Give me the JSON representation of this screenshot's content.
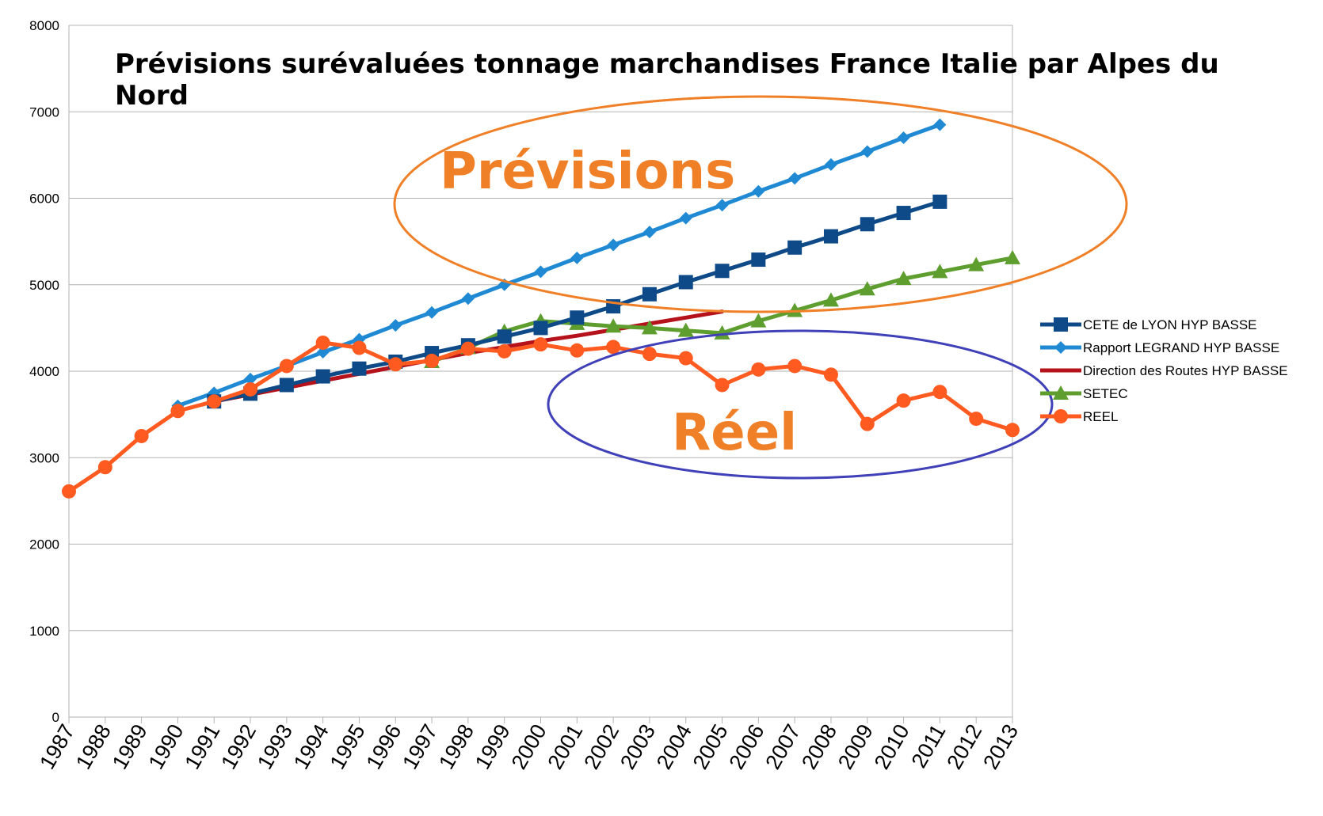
{
  "chart_data": {
    "type": "line",
    "title_lines": [
      "Prévisions surévaluées tonnage marchandises France Italie par Alpes du",
      "Nord"
    ],
    "xlabel": "",
    "ylabel": "",
    "ylim": [
      0,
      8000
    ],
    "y_ticks": [
      0,
      1000,
      2000,
      3000,
      4000,
      5000,
      6000,
      7000,
      8000
    ],
    "x": [
      "1987",
      "1988",
      "1989",
      "1990",
      "1991",
      "1992",
      "1993",
      "1994",
      "1995",
      "1996",
      "1997",
      "1998",
      "1999",
      "2000",
      "2001",
      "2002",
      "2003",
      "2004",
      "2005",
      "2006",
      "2007",
      "2008",
      "2009",
      "2010",
      "2011",
      "2012",
      "2013"
    ],
    "grid": "horizontal",
    "legend_position": "right",
    "series": [
      {
        "name": "CETE de LYON HYP BASSE",
        "color": "#0d4a87",
        "marker": "square",
        "values": [
          null,
          null,
          null,
          null,
          3650,
          3740,
          3840,
          3940,
          4030,
          4110,
          4210,
          4300,
          4400,
          4500,
          4620,
          4750,
          4890,
          5030,
          5160,
          5290,
          5430,
          5560,
          5700,
          5830,
          5960,
          null,
          null
        ]
      },
      {
        "name": "Rapport LEGRAND HYP BASSE",
        "color": "#1f8ad3",
        "marker": "diamond",
        "values": [
          null,
          null,
          null,
          3600,
          3750,
          3910,
          4060,
          4220,
          4370,
          4530,
          4680,
          4840,
          5000,
          5150,
          5310,
          5460,
          5610,
          5770,
          5920,
          6080,
          6230,
          6390,
          6540,
          6700,
          6850,
          null,
          null
        ]
      },
      {
        "name": "Direction des Routes HYP BASSE",
        "color": "#b5121b",
        "marker": "none",
        "values": [
          null,
          null,
          null,
          null,
          3650,
          3730,
          3810,
          3890,
          3970,
          4050,
          4130,
          4210,
          4280,
          4350,
          4410,
          4480,
          4550,
          4620,
          4690,
          null,
          null,
          null,
          null,
          null,
          null,
          null,
          null
        ]
      },
      {
        "name": "SETEC",
        "color": "#5d9e2e",
        "marker": "triangle",
        "values": [
          null,
          null,
          null,
          null,
          null,
          null,
          null,
          null,
          null,
          null,
          4110,
          4270,
          4460,
          4580,
          4550,
          4520,
          4500,
          4470,
          4440,
          4580,
          4700,
          4820,
          4950,
          5070,
          5150,
          5230,
          5310
        ]
      },
      {
        "name": "REEL",
        "color": "#ff5a1f",
        "marker": "circle",
        "values": [
          2610,
          2890,
          3250,
          3540,
          3650,
          3790,
          4060,
          4330,
          4270,
          4080,
          4120,
          4260,
          4230,
          4310,
          4240,
          4280,
          4200,
          4150,
          3840,
          4020,
          4060,
          3960,
          3390,
          3660,
          3760,
          3450,
          3320
        ]
      }
    ],
    "annotations": [
      {
        "text": "Prévisions",
        "color": "#f08028",
        "ellipse_color": "#f08028"
      },
      {
        "text": "Réel",
        "color": "#f08028",
        "ellipse_color": "#4040b8"
      }
    ]
  }
}
